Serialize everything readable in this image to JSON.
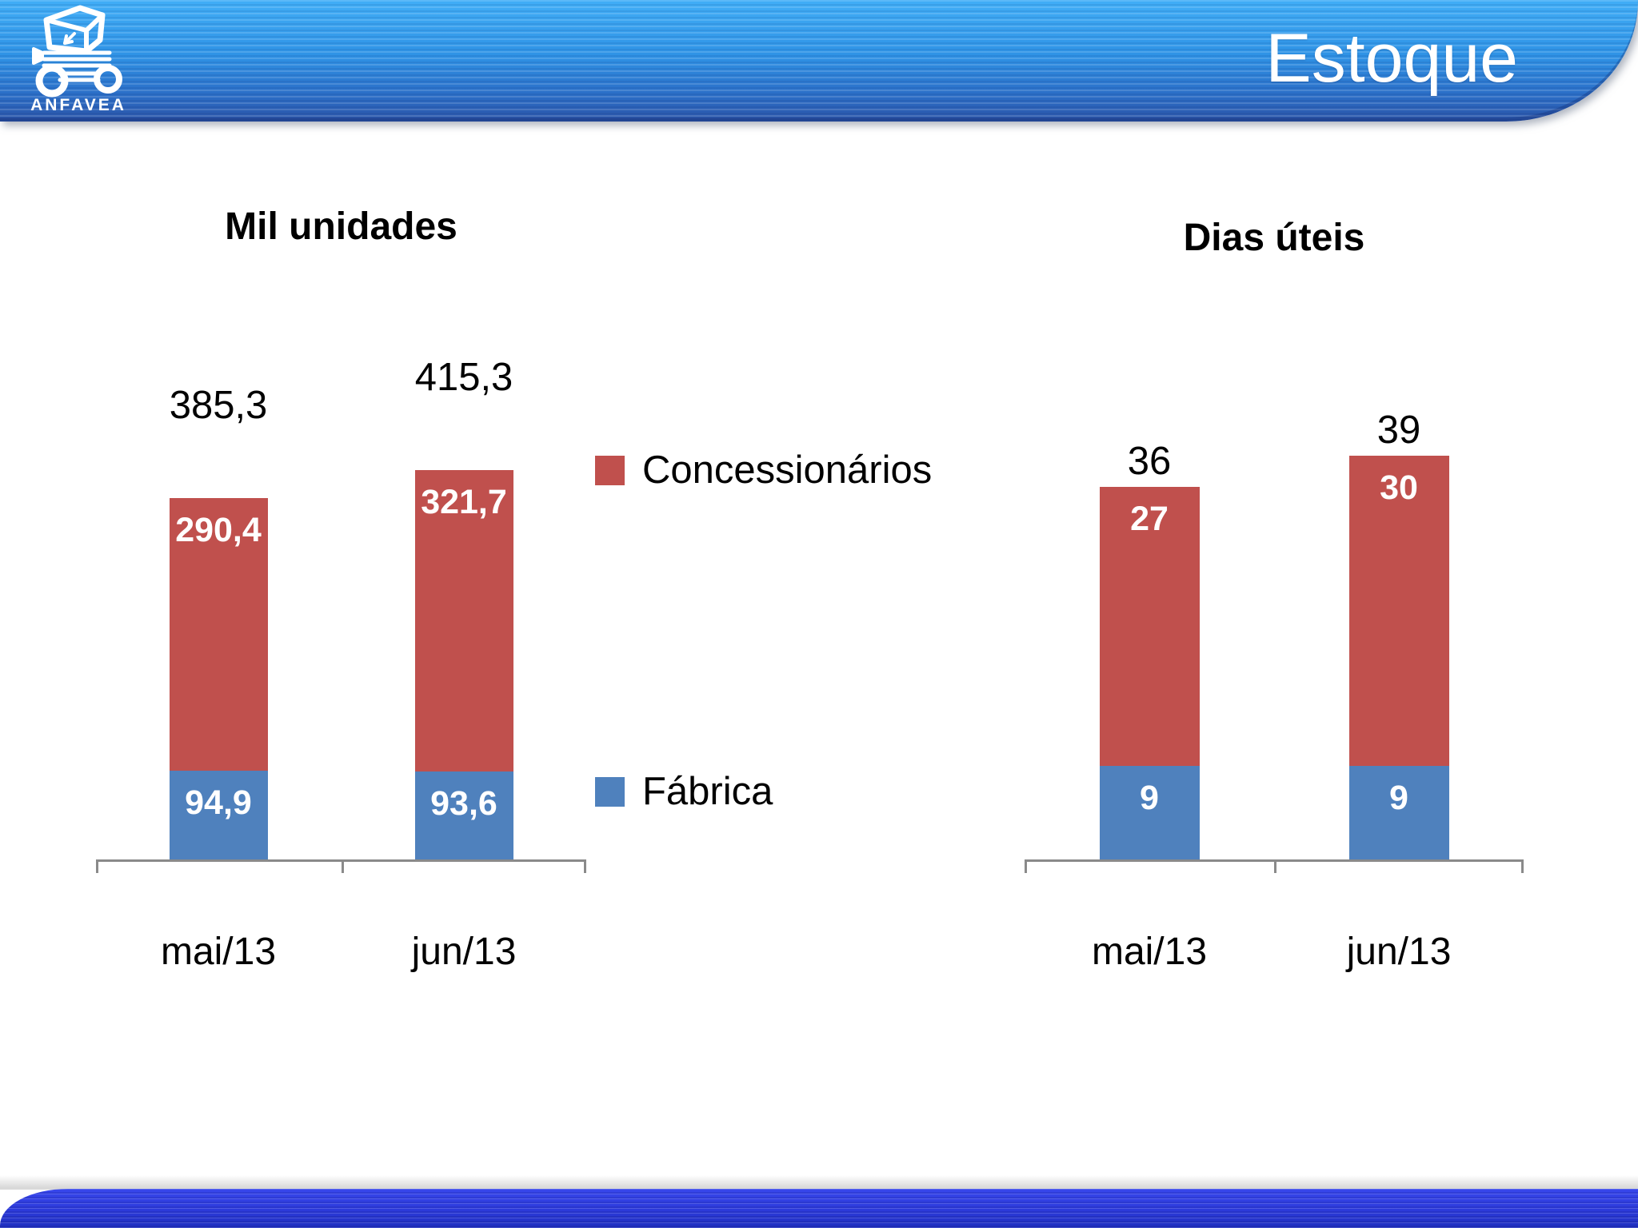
{
  "header": {
    "title": "Estoque",
    "logo_text": "ANFAVEA"
  },
  "legend": {
    "items": [
      {
        "label": "Concessionários",
        "color": "#c0504d"
      },
      {
        "label": "Fábrica",
        "color": "#4f81bd"
      }
    ]
  },
  "colors": {
    "concessionarios_red": "#c0504d",
    "fabrica_blue": "#4f81bd",
    "header_blue_top": "#41aef7",
    "header_blue_bottom": "#2b55a8",
    "footer_blue": "#2c3ada",
    "axis_gray": "#8a8a8a"
  },
  "chart_data": [
    {
      "type": "bar",
      "stacked": true,
      "title": "Mil unidades",
      "categories": [
        "mai/13",
        "jun/13"
      ],
      "series": [
        {
          "name": "Fábrica",
          "color": "#4f81bd",
          "values": [
            94.9,
            93.6
          ],
          "labels": [
            "94,9",
            "93,6"
          ]
        },
        {
          "name": "Concessionários",
          "color": "#c0504d",
          "values": [
            290.4,
            321.7
          ],
          "labels": [
            "290,4",
            "321,7"
          ]
        }
      ],
      "totals": [
        385.3,
        415.3
      ],
      "total_labels": [
        "385,3",
        "415,3"
      ],
      "xlabel": "",
      "ylabel": "",
      "grid": false,
      "legend_position": "right-of-chart"
    },
    {
      "type": "bar",
      "stacked": true,
      "title": "Dias úteis",
      "categories": [
        "mai/13",
        "jun/13"
      ],
      "series": [
        {
          "name": "Fábrica",
          "color": "#4f81bd",
          "values": [
            9,
            9
          ],
          "labels": [
            "9",
            "9"
          ]
        },
        {
          "name": "Concessionários",
          "color": "#c0504d",
          "values": [
            27,
            30
          ],
          "labels": [
            "27",
            "30"
          ]
        }
      ],
      "totals": [
        36,
        39
      ],
      "total_labels": [
        "36",
        "39"
      ],
      "xlabel": "",
      "ylabel": "",
      "grid": false,
      "legend_position": "none"
    }
  ]
}
